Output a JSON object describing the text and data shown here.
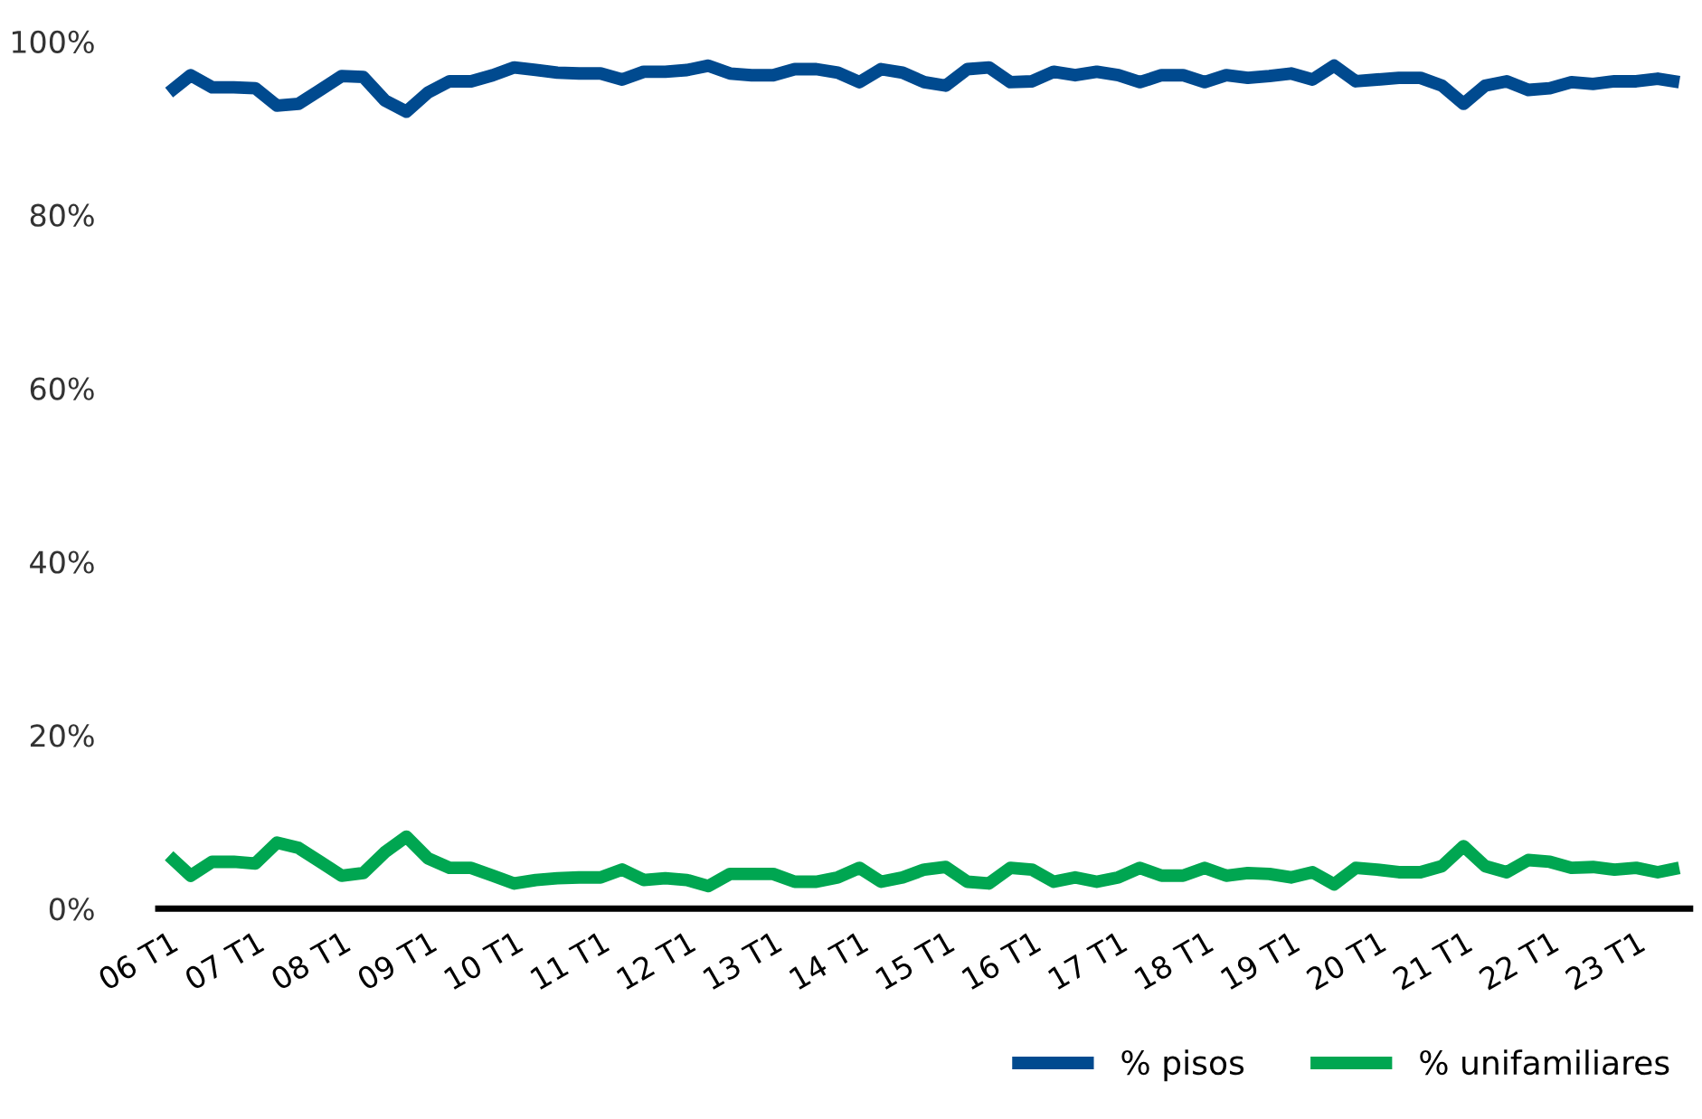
{
  "chart_data": {
    "type": "line",
    "categories": [
      "06 T1",
      null,
      null,
      null,
      "07 T1",
      null,
      null,
      null,
      "08 T1",
      null,
      null,
      null,
      "09 T1",
      null,
      null,
      null,
      "10 T1",
      null,
      null,
      null,
      "11 T1",
      null,
      null,
      null,
      "12 T1",
      null,
      null,
      null,
      "13 T1",
      null,
      null,
      null,
      "14 T1",
      null,
      null,
      null,
      "15 T1",
      null,
      null,
      null,
      "16 T1",
      null,
      null,
      null,
      "17 T1",
      null,
      null,
      null,
      "18 T1",
      null,
      null,
      null,
      "19 T1",
      null,
      null,
      null,
      "20 T1",
      null,
      null,
      null,
      "21 T1",
      null,
      null,
      null,
      "22 T1",
      null,
      null,
      null,
      "23 T1",
      null,
      null
    ],
    "series": [
      {
        "name": "% pisos",
        "color": "#004a8f",
        "values": [
          94.1,
          96.1,
          94.7,
          94.7,
          94.6,
          92.6,
          92.8,
          94.4,
          96.0,
          95.9,
          93.2,
          91.9,
          94.1,
          95.4,
          95.4,
          96.1,
          97.0,
          96.7,
          96.4,
          96.3,
          96.3,
          95.6,
          96.5,
          96.5,
          96.7,
          97.2,
          96.3,
          96.1,
          96.1,
          96.8,
          96.8,
          96.4,
          95.3,
          96.8,
          96.4,
          95.3,
          94.9,
          96.8,
          97.0,
          95.3,
          95.4,
          96.5,
          96.1,
          96.5,
          96.1,
          95.3,
          96.1,
          96.1,
          95.3,
          96.1,
          95.8,
          96.0,
          96.3,
          95.6,
          97.2,
          95.4,
          95.6,
          95.8,
          95.8,
          94.9,
          92.8,
          94.9,
          95.4,
          94.4,
          94.6,
          95.3,
          95.1,
          95.4,
          95.4,
          95.7,
          95.3
        ]
      },
      {
        "name": "% unifamiliares",
        "color": "#00a651",
        "values": [
          6.1,
          3.8,
          5.4,
          5.4,
          5.2,
          7.6,
          7.0,
          5.4,
          3.8,
          4.1,
          6.5,
          8.3,
          5.8,
          4.7,
          4.7,
          3.8,
          2.9,
          3.3,
          3.5,
          3.6,
          3.6,
          4.5,
          3.3,
          3.5,
          3.3,
          2.6,
          4.0,
          4.0,
          4.0,
          3.1,
          3.1,
          3.6,
          4.7,
          3.1,
          3.6,
          4.5,
          4.8,
          3.1,
          2.9,
          4.7,
          4.5,
          3.1,
          3.6,
          3.1,
          3.6,
          4.7,
          3.8,
          3.8,
          4.7,
          3.8,
          4.1,
          4.0,
          3.6,
          4.2,
          2.8,
          4.7,
          4.5,
          4.2,
          4.2,
          4.9,
          7.2,
          4.9,
          4.2,
          5.6,
          5.4,
          4.7,
          4.8,
          4.5,
          4.7,
          4.2,
          4.7
        ]
      }
    ],
    "ylim": [
      0,
      100
    ],
    "yticks": [
      {
        "value": 0,
        "label": "0%"
      },
      {
        "value": 20,
        "label": "20%"
      },
      {
        "value": 40,
        "label": "40%"
      },
      {
        "value": 60,
        "label": "60%"
      },
      {
        "value": 80,
        "label": "80%"
      },
      {
        "value": 100,
        "label": "100%"
      }
    ],
    "legend": "bottom right"
  }
}
